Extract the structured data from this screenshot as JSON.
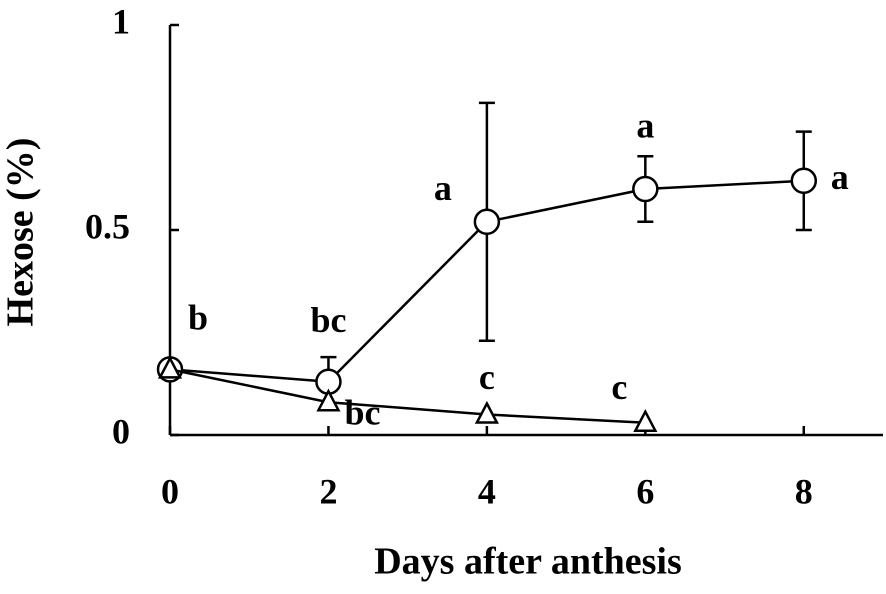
{
  "chart_data": {
    "type": "line",
    "x_label": "Days after anthesis",
    "y_label": "Hexose (%)",
    "xlim": [
      0,
      9
    ],
    "ylim": [
      0,
      1
    ],
    "xticks": [
      0,
      2,
      4,
      6,
      8
    ],
    "yticks": [
      0,
      0.5,
      1
    ],
    "color": "#000000",
    "series": [
      {
        "marker": "circle",
        "x": [
          0,
          2,
          4,
          6,
          8
        ],
        "values": [
          0.16,
          0.13,
          0.52,
          0.6,
          0.62
        ],
        "errors": [
          null,
          0.06,
          0.29,
          0.08,
          0.12
        ],
        "letters": [
          "b",
          "bc",
          "a",
          "a",
          "a"
        ]
      },
      {
        "marker": "triangle",
        "x": [
          0,
          2,
          4,
          6
        ],
        "values": [
          0.16,
          0.08,
          0.05,
          0.03
        ],
        "errors": [
          null,
          null,
          null,
          null
        ],
        "letters": [
          null,
          "bc",
          "c",
          "c"
        ]
      }
    ]
  }
}
